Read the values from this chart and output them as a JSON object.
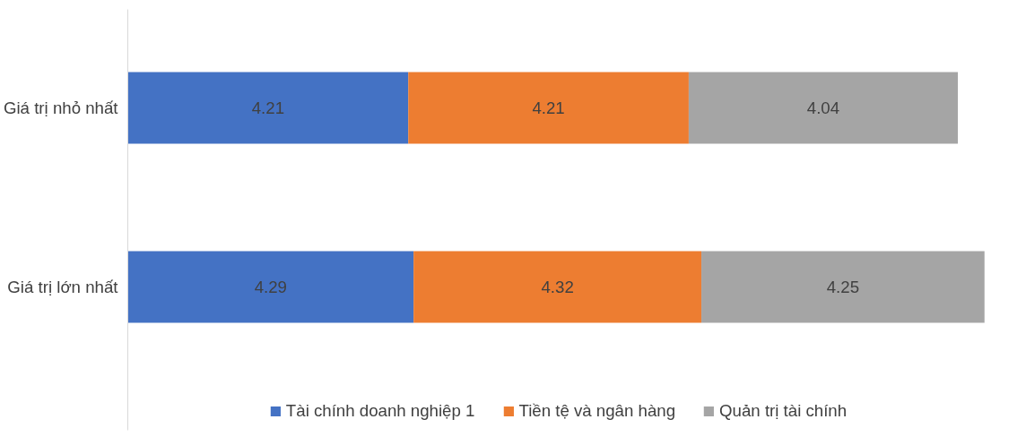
{
  "chart_data": {
    "type": "bar",
    "orientation": "horizontal",
    "stacked": true,
    "data_labels": true,
    "legend": "bottom",
    "grid": false,
    "categories": [
      "Giá trị nhỏ nhất",
      "Giá trị lớn nhất"
    ],
    "series": [
      {
        "name": "Tài chính doanh nghiệp 1",
        "color": "#4472c4",
        "values": [
          4.21,
          4.29
        ]
      },
      {
        "name": "Tiền tệ và ngân hàng",
        "color": "#ed7d31",
        "values": [
          4.21,
          4.32
        ]
      },
      {
        "name": "Quản trị tài chính",
        "color": "#a5a5a5",
        "values": [
          4.04,
          4.25
        ]
      }
    ]
  }
}
